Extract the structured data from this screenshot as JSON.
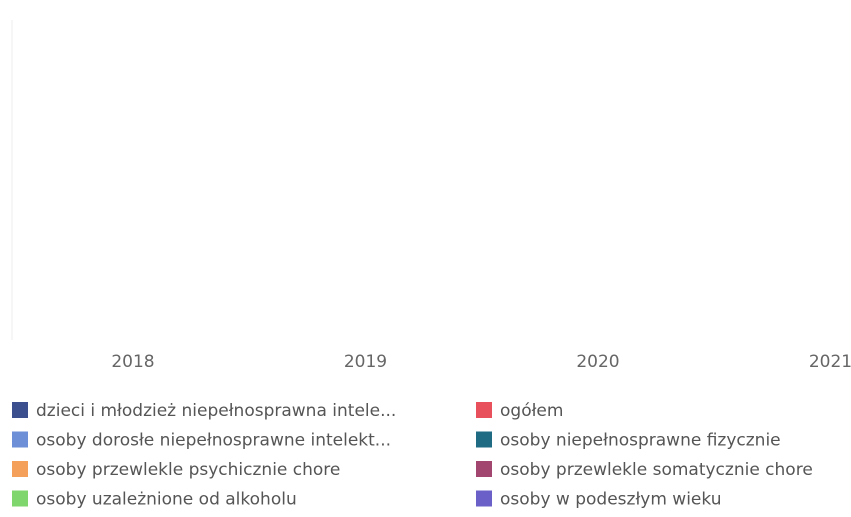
{
  "chart_data": {
    "type": "line",
    "categories": [
      "2018",
      "2019",
      "2020",
      "2021"
    ],
    "series": [
      {
        "name": "dzieci i młodzież niepełnosprawna intele...",
        "color": "#3b4f8e",
        "values": [
          null,
          null,
          null,
          null
        ]
      },
      {
        "name": "ogółem",
        "color": "#e8505b",
        "values": [
          null,
          null,
          null,
          null
        ]
      },
      {
        "name": "osoby dorosłe niepełnosprawne intelekt...",
        "color": "#6d8fd8",
        "values": [
          null,
          null,
          null,
          null
        ]
      },
      {
        "name": "osoby niepełnosprawne fizycznie",
        "color": "#1f6b84",
        "values": [
          null,
          null,
          null,
          null
        ]
      },
      {
        "name": "osoby przewlekle psychicznie chore",
        "color": "#f5a05a",
        "values": [
          null,
          null,
          null,
          null
        ]
      },
      {
        "name": "osoby przewlekle somatycznie chore",
        "color": "#a2466f",
        "values": [
          null,
          null,
          null,
          null
        ]
      },
      {
        "name": "osoby uzależnione od alkoholu",
        "color": "#7fd66c",
        "values": [
          null,
          null,
          null,
          null
        ]
      },
      {
        "name": "osoby w podeszłym wieku",
        "color": "#6a60c8",
        "values": [
          null,
          null,
          null,
          null
        ]
      }
    ]
  }
}
